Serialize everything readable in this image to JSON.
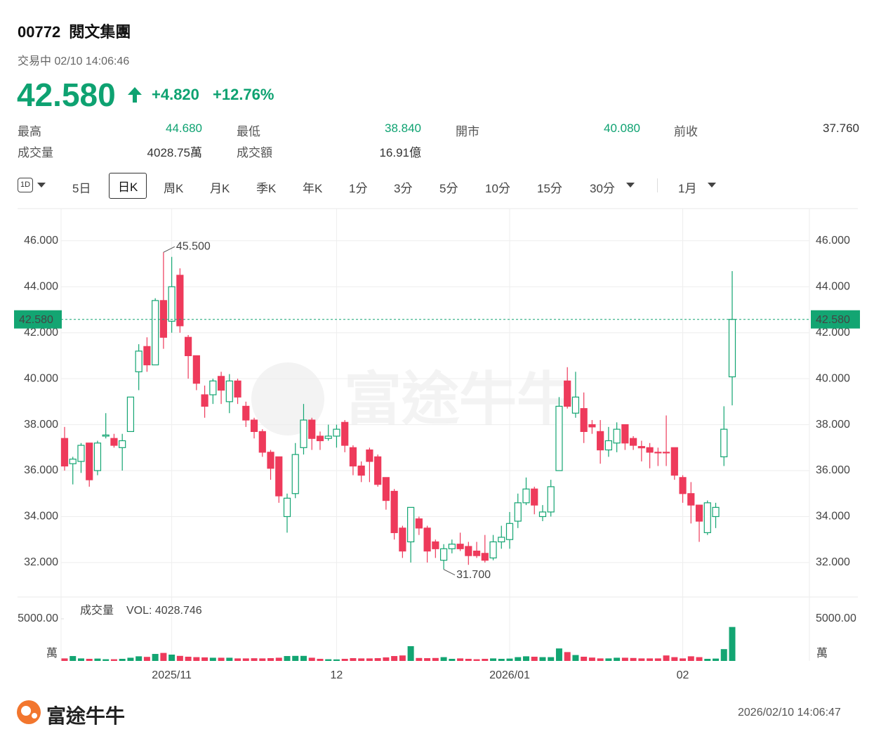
{
  "header": {
    "code": "00772",
    "name": "閱文集團",
    "status": "交易中 02/10 14:06:46",
    "price": "42.580",
    "change": "+4.820",
    "change_pct": "+12.76%"
  },
  "stats": [
    [
      {
        "label": "最高",
        "value": "44.680"
      },
      {
        "label": "最低",
        "value": "38.840"
      },
      {
        "label": "開市",
        "value": "40.080"
      },
      {
        "label": "前收",
        "value": "37.760"
      }
    ],
    [
      {
        "label": "成交量",
        "value": "4028.75萬"
      },
      {
        "label": "成交額",
        "value": "16.91億"
      }
    ]
  ],
  "tabs": [
    "1D",
    "5日",
    "日K",
    "周K",
    "月K",
    "季K",
    "年K",
    "1分",
    "3分",
    "5分",
    "10分",
    "15分",
    "30分",
    "1月"
  ],
  "footer": {
    "brand": "富途牛牛",
    "timestamp": "2026/02/10 14:06:47"
  },
  "chart_data": {
    "type": "candlestick",
    "watermark": "富途牛牛",
    "categories": [
      null,
      null,
      null,
      null,
      null,
      null,
      null,
      null,
      null,
      null,
      null,
      null,
      null,
      "2025/11",
      null,
      null,
      null,
      null,
      null,
      null,
      null,
      null,
      null,
      null,
      null,
      null,
      null,
      null,
      null,
      null,
      null,
      null,
      null,
      "12",
      null,
      null,
      null,
      null,
      null,
      null,
      null,
      null,
      null,
      null,
      null,
      null,
      null,
      null,
      null,
      null,
      null,
      null,
      null,
      null,
      "2026/01",
      null,
      null,
      null,
      null,
      null,
      null,
      null,
      null,
      null,
      null,
      null,
      null,
      null,
      null,
      null,
      null,
      null,
      null,
      null,
      null,
      "02",
      null,
      null,
      null,
      null,
      null,
      null
    ],
    "open": [
      37.4,
      36.3,
      36.4,
      37.2,
      36.0,
      37.5,
      37.4,
      37.0,
      37.7,
      40.3,
      41.4,
      40.6,
      43.4,
      42.5,
      44.5,
      41.8,
      41.0,
      39.3,
      39.3,
      40.1,
      39.0,
      39.9,
      38.8,
      38.2,
      37.7,
      36.8,
      36.6,
      34.0,
      35.0,
      37.0,
      38.2,
      37.5,
      37.4,
      37.5,
      38.1,
      37.0,
      36.2,
      36.9,
      36.6,
      35.7,
      35.1,
      33.5,
      32.9,
      33.9,
      33.5,
      32.9,
      32.1,
      32.6,
      32.8,
      32.7,
      32.5,
      32.4,
      32.2,
      32.9,
      33.0,
      33.8,
      34.6,
      35.2,
      34.0,
      34.2,
      36.0,
      39.9,
      38.5,
      38.7,
      38.0,
      37.7,
      36.9,
      37.2,
      38.0,
      37.4,
      37.05,
      37.0,
      36.8,
      36.8,
      37.0,
      35.7,
      35.0,
      34.5,
      33.3,
      34.0,
      36.6,
      40.08
    ],
    "high": [
      37.9,
      36.6,
      37.2,
      37.2,
      37.3,
      38.5,
      37.6,
      37.6,
      39.2,
      41.5,
      41.8,
      43.5,
      45.5,
      45.3,
      44.8,
      41.9,
      41.0,
      39.7,
      40.0,
      40.3,
      40.2,
      40.0,
      39.0,
      38.3,
      37.8,
      36.9,
      36.6,
      35.0,
      37.2,
      38.9,
      38.3,
      37.7,
      38.0,
      38.0,
      38.2,
      37.1,
      36.4,
      37.0,
      36.7,
      35.7,
      35.2,
      33.6,
      34.4,
      34.0,
      33.6,
      33.0,
      32.8,
      33.0,
      33.3,
      32.9,
      32.9,
      33.2,
      33.2,
      33.6,
      34.2,
      35.0,
      35.7,
      35.3,
      34.5,
      35.6,
      39.2,
      40.5,
      40.3,
      39.4,
      38.2,
      38.2,
      37.9,
      38.1,
      38.0,
      37.5,
      37.3,
      37.2,
      37.0,
      38.4,
      37.0,
      35.8,
      35.5,
      34.5,
      34.7,
      34.6,
      38.8,
      44.68
    ],
    "low": [
      36.0,
      35.4,
      35.9,
      35.3,
      35.8,
      37.4,
      37.0,
      36.0,
      37.7,
      39.5,
      40.3,
      40.6,
      41.3,
      42.0,
      42.0,
      40.0,
      39.5,
      38.3,
      38.9,
      38.9,
      38.5,
      38.9,
      37.9,
      37.4,
      36.6,
      35.6,
      34.6,
      33.3,
      34.8,
      36.7,
      36.9,
      36.9,
      37.3,
      37.0,
      36.8,
      35.8,
      35.5,
      35.5,
      35.3,
      34.3,
      33.0,
      32.2,
      32.0,
      33.2,
      32.0,
      32.2,
      31.7,
      32.4,
      32.5,
      31.9,
      32.2,
      32.0,
      32.1,
      32.6,
      32.6,
      33.5,
      34.5,
      34.1,
      33.8,
      34.0,
      36.0,
      38.7,
      38.3,
      37.2,
      37.6,
      36.3,
      36.6,
      36.8,
      36.9,
      36.9,
      36.4,
      36.1,
      36.2,
      36.2,
      35.6,
      34.6,
      33.7,
      32.9,
      33.2,
      33.5,
      36.2,
      38.84
    ],
    "close": [
      36.2,
      36.5,
      37.1,
      35.6,
      37.2,
      37.55,
      37.1,
      37.3,
      39.2,
      41.2,
      40.6,
      43.4,
      41.8,
      44.0,
      42.3,
      41.0,
      39.8,
      38.8,
      39.9,
      39.5,
      39.9,
      39.2,
      38.2,
      37.7,
      36.8,
      36.1,
      34.9,
      34.8,
      36.7,
      38.2,
      37.4,
      37.3,
      37.5,
      37.8,
      37.1,
      36.2,
      35.8,
      36.4,
      35.4,
      34.7,
      33.3,
      32.5,
      34.4,
      33.5,
      32.5,
      32.6,
      32.6,
      32.8,
      32.6,
      32.3,
      32.3,
      32.1,
      32.9,
      33.1,
      33.7,
      34.6,
      35.2,
      34.5,
      34.2,
      35.3,
      38.8,
      38.8,
      39.2,
      37.7,
      37.9,
      36.9,
      37.3,
      37.8,
      37.2,
      37.1,
      36.99,
      36.8,
      36.77,
      36.77,
      35.8,
      35.0,
      34.5,
      33.8,
      34.6,
      34.4,
      37.8,
      42.58
    ],
    "volume": [
      300,
      580,
      300,
      250,
      280,
      200,
      200,
      250,
      380,
      550,
      480,
      830,
      950,
      750,
      600,
      500,
      450,
      420,
      380,
      380,
      380,
      300,
      300,
      320,
      300,
      330,
      380,
      580,
      600,
      600,
      380,
      250,
      200,
      180,
      250,
      330,
      300,
      300,
      330,
      420,
      580,
      650,
      1750,
      350,
      330,
      350,
      450,
      250,
      300,
      250,
      200,
      250,
      300,
      250,
      280,
      450,
      550,
      500,
      450,
      450,
      1480,
      1050,
      700,
      500,
      400,
      300,
      300,
      380,
      380,
      350,
      300,
      300,
      300,
      650,
      450,
      300,
      550,
      450,
      250,
      280,
      1400,
      4028.746
    ],
    "up_color": "#13a572",
    "down_color": "#ee3a5b",
    "ylim": [
      30.5,
      47.4
    ],
    "yticks": [
      {
        "value": 32,
        "label": "32.000"
      },
      {
        "value": 34,
        "label": "34.000"
      },
      {
        "value": 36,
        "label": "36.000"
      },
      {
        "value": 38,
        "label": "38.000"
      },
      {
        "value": 40,
        "label": "40.000"
      },
      {
        "value": 42,
        "label": "42.000"
      },
      {
        "value": 44,
        "label": "44.000"
      },
      {
        "value": 46,
        "label": "46.000"
      }
    ],
    "current_price": {
      "value": 42.58,
      "label": "42.580"
    },
    "annotations": [
      {
        "value": 45.5,
        "label": "45.500"
      },
      {
        "value": 31.7,
        "label": "31.700"
      }
    ],
    "volume_title": "成交量",
    "volume_text": "VOL: 4028.746",
    "volume_ylim": [
      0,
      5000
    ],
    "volume_yticks": [
      {
        "value": 5000,
        "label": "5000.00"
      }
    ],
    "volume_unit": "萬",
    "grid": true
  }
}
